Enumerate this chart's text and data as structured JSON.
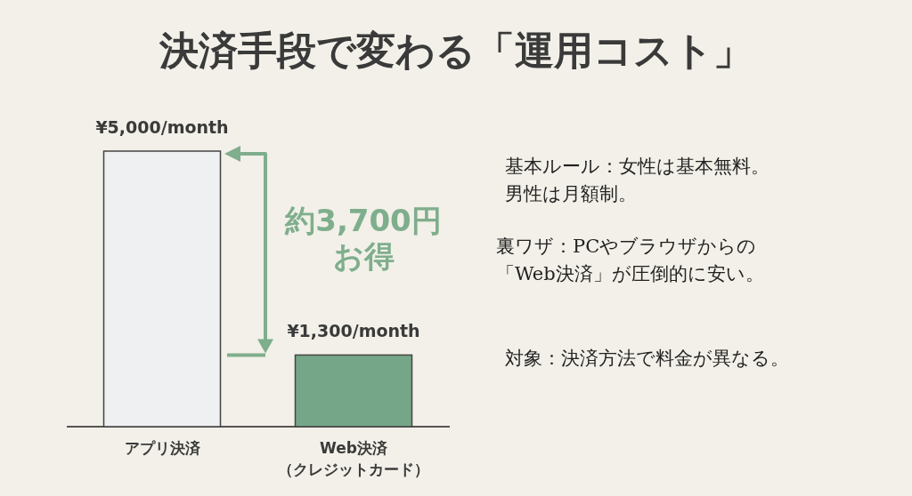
{
  "chart_data": {
    "type": "bar",
    "title": "決済手段で変わる「運用コスト」",
    "categories": [
      "アプリ決済",
      "Web決済（クレジットカード）"
    ],
    "values": [
      5000,
      1300
    ],
    "colors": [
      "#eef0f2",
      "#76a688"
    ],
    "value_labels": [
      "¥5,000/month",
      "¥1,300/month"
    ],
    "relative": false,
    "annotations": [
      "約3,700円お得",
      "基本ルール：女性は基本無料。男性は月額制。",
      "裏ワザ：PCやブラウザからの「Web決済」が圧倒的に安い。",
      "対象：決済方法で料金が異なる。"
    ]
  }
}
